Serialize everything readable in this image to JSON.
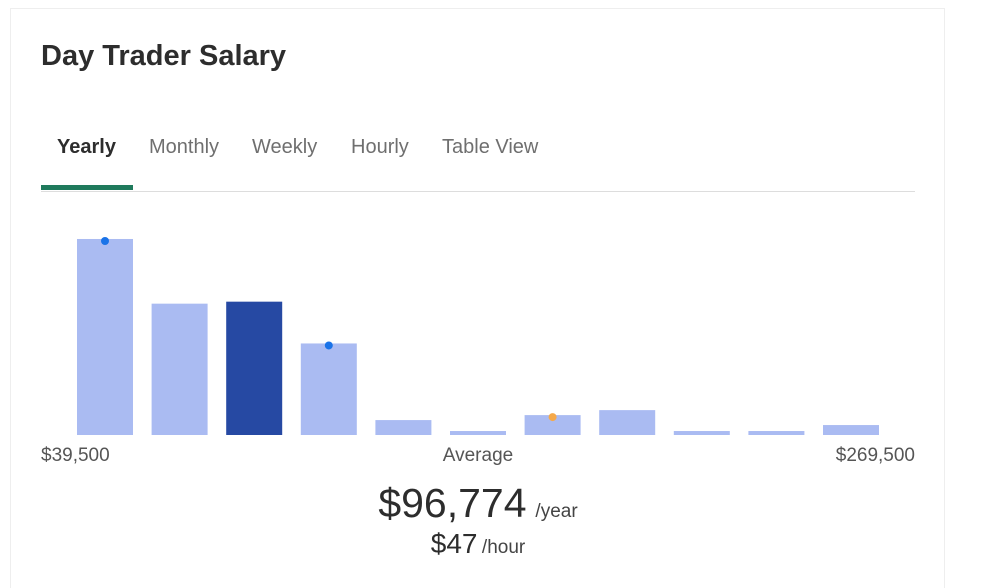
{
  "header": {
    "title": "Day Trader Salary"
  },
  "tabs": [
    "Yearly",
    "Monthly",
    "Weekly",
    "Hourly",
    "Table View"
  ],
  "active_tab": 0,
  "chart_data": {
    "type": "bar",
    "values": [
      197,
      132,
      134,
      92,
      15,
      4,
      20,
      25,
      4,
      4,
      10
    ],
    "ylim": [
      0,
      200
    ],
    "color": "#aabbf2",
    "highlight": {
      "index": 2,
      "color": "#2649a3"
    },
    "markers": [
      {
        "index": 0,
        "color": "#1a73e8"
      },
      {
        "index": 3,
        "color": "#1a73e8"
      },
      {
        "index": 6,
        "color": "#f5a94a"
      }
    ],
    "x_min_label": "$39,500",
    "x_mid_label": "Average",
    "x_max_label": "$269,500"
  },
  "salary": {
    "yearly": "$96,774",
    "yearly_unit": "/year",
    "hourly": "$47",
    "hourly_unit": "/hour"
  }
}
